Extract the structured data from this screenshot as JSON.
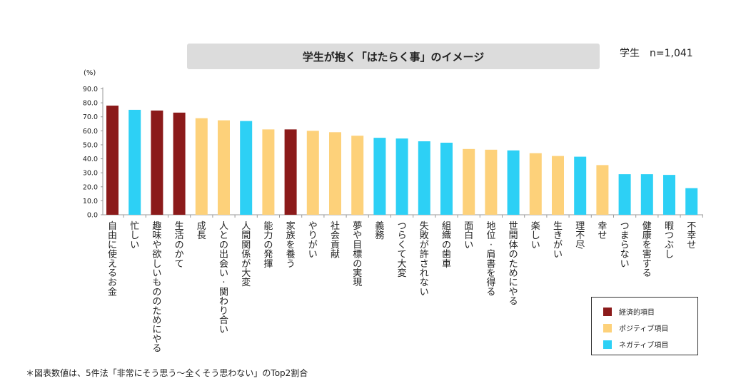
{
  "header": {
    "title": "学生が抱く「はたらく事」のイメージ",
    "sample": "学生　n=1,041"
  },
  "footnote": "＊図表数値は、5件法「非常にそう思う～全くそう思わない」のTop2割合",
  "colors": {
    "economic": "#8b1a1a",
    "positive": "#fdd17a",
    "negative": "#2dd0f5"
  },
  "legend": [
    {
      "key": "economic",
      "label": "経済的項目"
    },
    {
      "key": "positive",
      "label": "ポジティブ項目"
    },
    {
      "key": "negative",
      "label": "ネガティブ項目"
    }
  ],
  "chart_data": {
    "type": "bar",
    "title": "学生が抱く「はたらく事」のイメージ",
    "ylabel": "(%)",
    "xlabel": "",
    "ylim": [
      0,
      90
    ],
    "yticks": [
      "0.0",
      "10.0",
      "20.0",
      "30.0",
      "40.0",
      "50.0",
      "60.0",
      "70.0",
      "80.0",
      "90.0"
    ],
    "categories": [
      "自由に使えるお金",
      "忙しい",
      "趣味や欲しいもののためにやる",
      "生活のかて",
      "成長",
      "人との出会い・関わり合い",
      "人間関係が大変",
      "能力の発揮",
      "家族を養う",
      "やりがい",
      "社会貢献",
      "夢や目標の実現",
      "義務",
      "つらくて大変",
      "失敗が許されない",
      "組織の歯車",
      "面白い",
      "地位・肩書を得る",
      "世間体のためにやる",
      "楽しい",
      "生きがい",
      "理不尽",
      "幸せ",
      "つまらない",
      "健康を害する",
      "暇つぶし",
      "不幸せ"
    ],
    "values": [
      78,
      75,
      74.5,
      73,
      69,
      67.5,
      67,
      61,
      61,
      60,
      59,
      56.5,
      55,
      54.5,
      52.5,
      51.5,
      47,
      46.5,
      46,
      44,
      42,
      41.5,
      35.5,
      29,
      29,
      28.5,
      19
    ],
    "groups": [
      "economic",
      "negative",
      "economic",
      "economic",
      "positive",
      "positive",
      "negative",
      "positive",
      "economic",
      "positive",
      "positive",
      "positive",
      "negative",
      "negative",
      "negative",
      "negative",
      "positive",
      "positive",
      "negative",
      "positive",
      "positive",
      "negative",
      "positive",
      "negative",
      "negative",
      "negative",
      "negative"
    ]
  }
}
